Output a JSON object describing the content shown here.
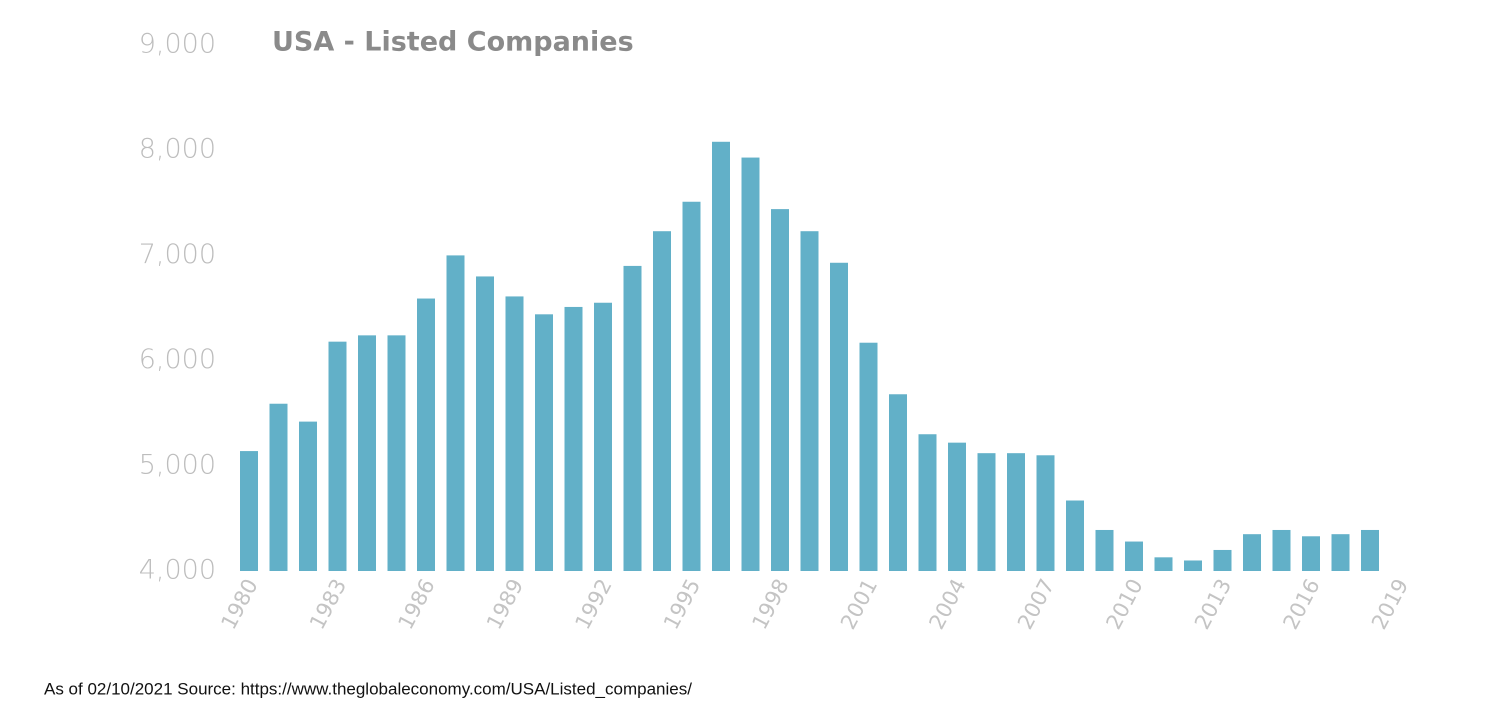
{
  "chart_data": {
    "type": "bar",
    "title": "USA - Listed Companies",
    "source": "As of 02/10/2021 Source: https://www.theglobaleconomy.com/USA/Listed_companies/",
    "categories": [
      "1980",
      null,
      null,
      "1983",
      null,
      null,
      "1986",
      null,
      null,
      "1989",
      null,
      null,
      "1992",
      null,
      null,
      "1995",
      null,
      null,
      "1998",
      null,
      null,
      "2001",
      null,
      null,
      "2004",
      null,
      null,
      "2007",
      null,
      null,
      "2010",
      null,
      null,
      "2013",
      null,
      null,
      "2016",
      null,
      null,
      "2019"
    ],
    "values": [
      5140,
      5590,
      5420,
      6180,
      6240,
      6240,
      6590,
      7000,
      6800,
      6610,
      6440,
      6510,
      6550,
      6900,
      7230,
      7510,
      8080,
      7930,
      7440,
      7230,
      6930,
      6170,
      5680,
      5300,
      5220,
      5120,
      5120,
      5100,
      4670,
      4390,
      4280,
      4130,
      4100,
      4200,
      4350,
      4390,
      4330,
      4350,
      4390,
      null
    ],
    "color": "#62b0c8",
    "ylim": [
      4000,
      9000
    ],
    "yticks": [
      {
        "value": 4000,
        "label": "4,000"
      },
      {
        "value": 5000,
        "label": "5,000"
      },
      {
        "value": 6000,
        "label": "6,000"
      },
      {
        "value": 7000,
        "label": "7,000"
      },
      {
        "value": 8000,
        "label": "8,000"
      },
      {
        "value": 9000,
        "label": "9,000"
      }
    ],
    "grid": false
  }
}
